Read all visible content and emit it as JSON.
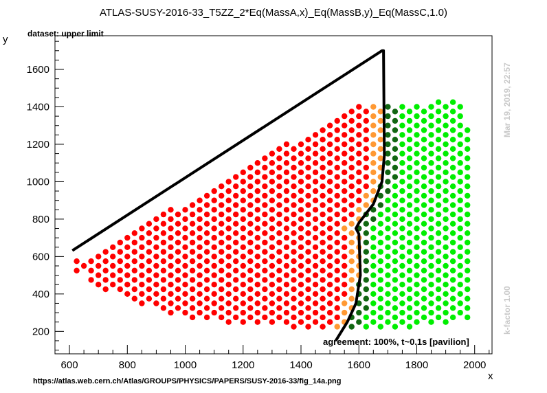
{
  "title": "ATLAS-SUSY-2016-33_T5ZZ_2*Eq(MassA,x)_Eq(MassB,y)_Eq(MassC,1.0)",
  "subtitle": "dataset: upper limit",
  "footer_url": "https://atlas.web.cern.ch/Atlas/GROUPS/PHYSICS/PAPERS/SUSY-2016-33/fig_14a.png",
  "side_date": "Mar 19, 2019, 22:57",
  "side_kfactor": "k-factor 1.00",
  "agreement_text": "agreement: 100%, t~0.1s [pavilion]",
  "colors": {
    "excluded": "#ff0000",
    "excluded_border": "#ff9933",
    "allowed": "#00ee00",
    "allowed_border": "#116611",
    "contour": "#000000"
  },
  "chart_data": {
    "type": "scatter",
    "xlabel": "x",
    "ylabel": "y",
    "xlim": [
      550,
      2060
    ],
    "ylim": [
      80,
      1780
    ],
    "x_ticks": [
      600,
      800,
      1000,
      1200,
      1400,
      1600,
      1800,
      2000
    ],
    "y_ticks": [
      200,
      400,
      600,
      800,
      1000,
      1200,
      1400,
      1600
    ],
    "grid": false,
    "grid_step": {
      "x": 25,
      "y": 25
    },
    "regions": {
      "lower_boundary": [
        [
          630,
          525
        ],
        [
          700,
          440
        ],
        [
          800,
          365
        ],
        [
          1000,
          278
        ],
        [
          1200,
          238
        ],
        [
          1400,
          218
        ],
        [
          1600,
          212
        ],
        [
          1700,
          215
        ],
        [
          1800,
          225
        ],
        [
          1900,
          240
        ],
        [
          1990,
          260
        ]
      ],
      "upper_boundary": [
        [
          630,
          575
        ],
        [
          1580,
          1400
        ],
        [
          1700,
          1415
        ],
        [
          1850,
          1420
        ],
        [
          1950,
          1440
        ],
        [
          1990,
          1210
        ],
        [
          1990,
          260
        ]
      ],
      "contour": [
        [
          610,
          632
        ],
        [
          1680,
          1700
        ],
        [
          1685,
          1700
        ],
        [
          1688,
          1140
        ],
        [
          1680,
          1000
        ],
        [
          1650,
          880
        ],
        [
          1600,
          780
        ],
        [
          1590,
          750
        ],
        [
          1600,
          720
        ],
        [
          1605,
          500
        ],
        [
          1590,
          350
        ],
        [
          1560,
          250
        ],
        [
          1520,
          150
        ]
      ]
    },
    "series": [
      {
        "name": "",
        "marker_role": "excluded"
      },
      {
        "name": "",
        "marker_role": "excluded_border"
      },
      {
        "name": "",
        "marker_role": "allowed_border"
      },
      {
        "name": "",
        "marker_role": "allowed"
      },
      {
        "name": "",
        "marker_role": "contour"
      }
    ]
  }
}
